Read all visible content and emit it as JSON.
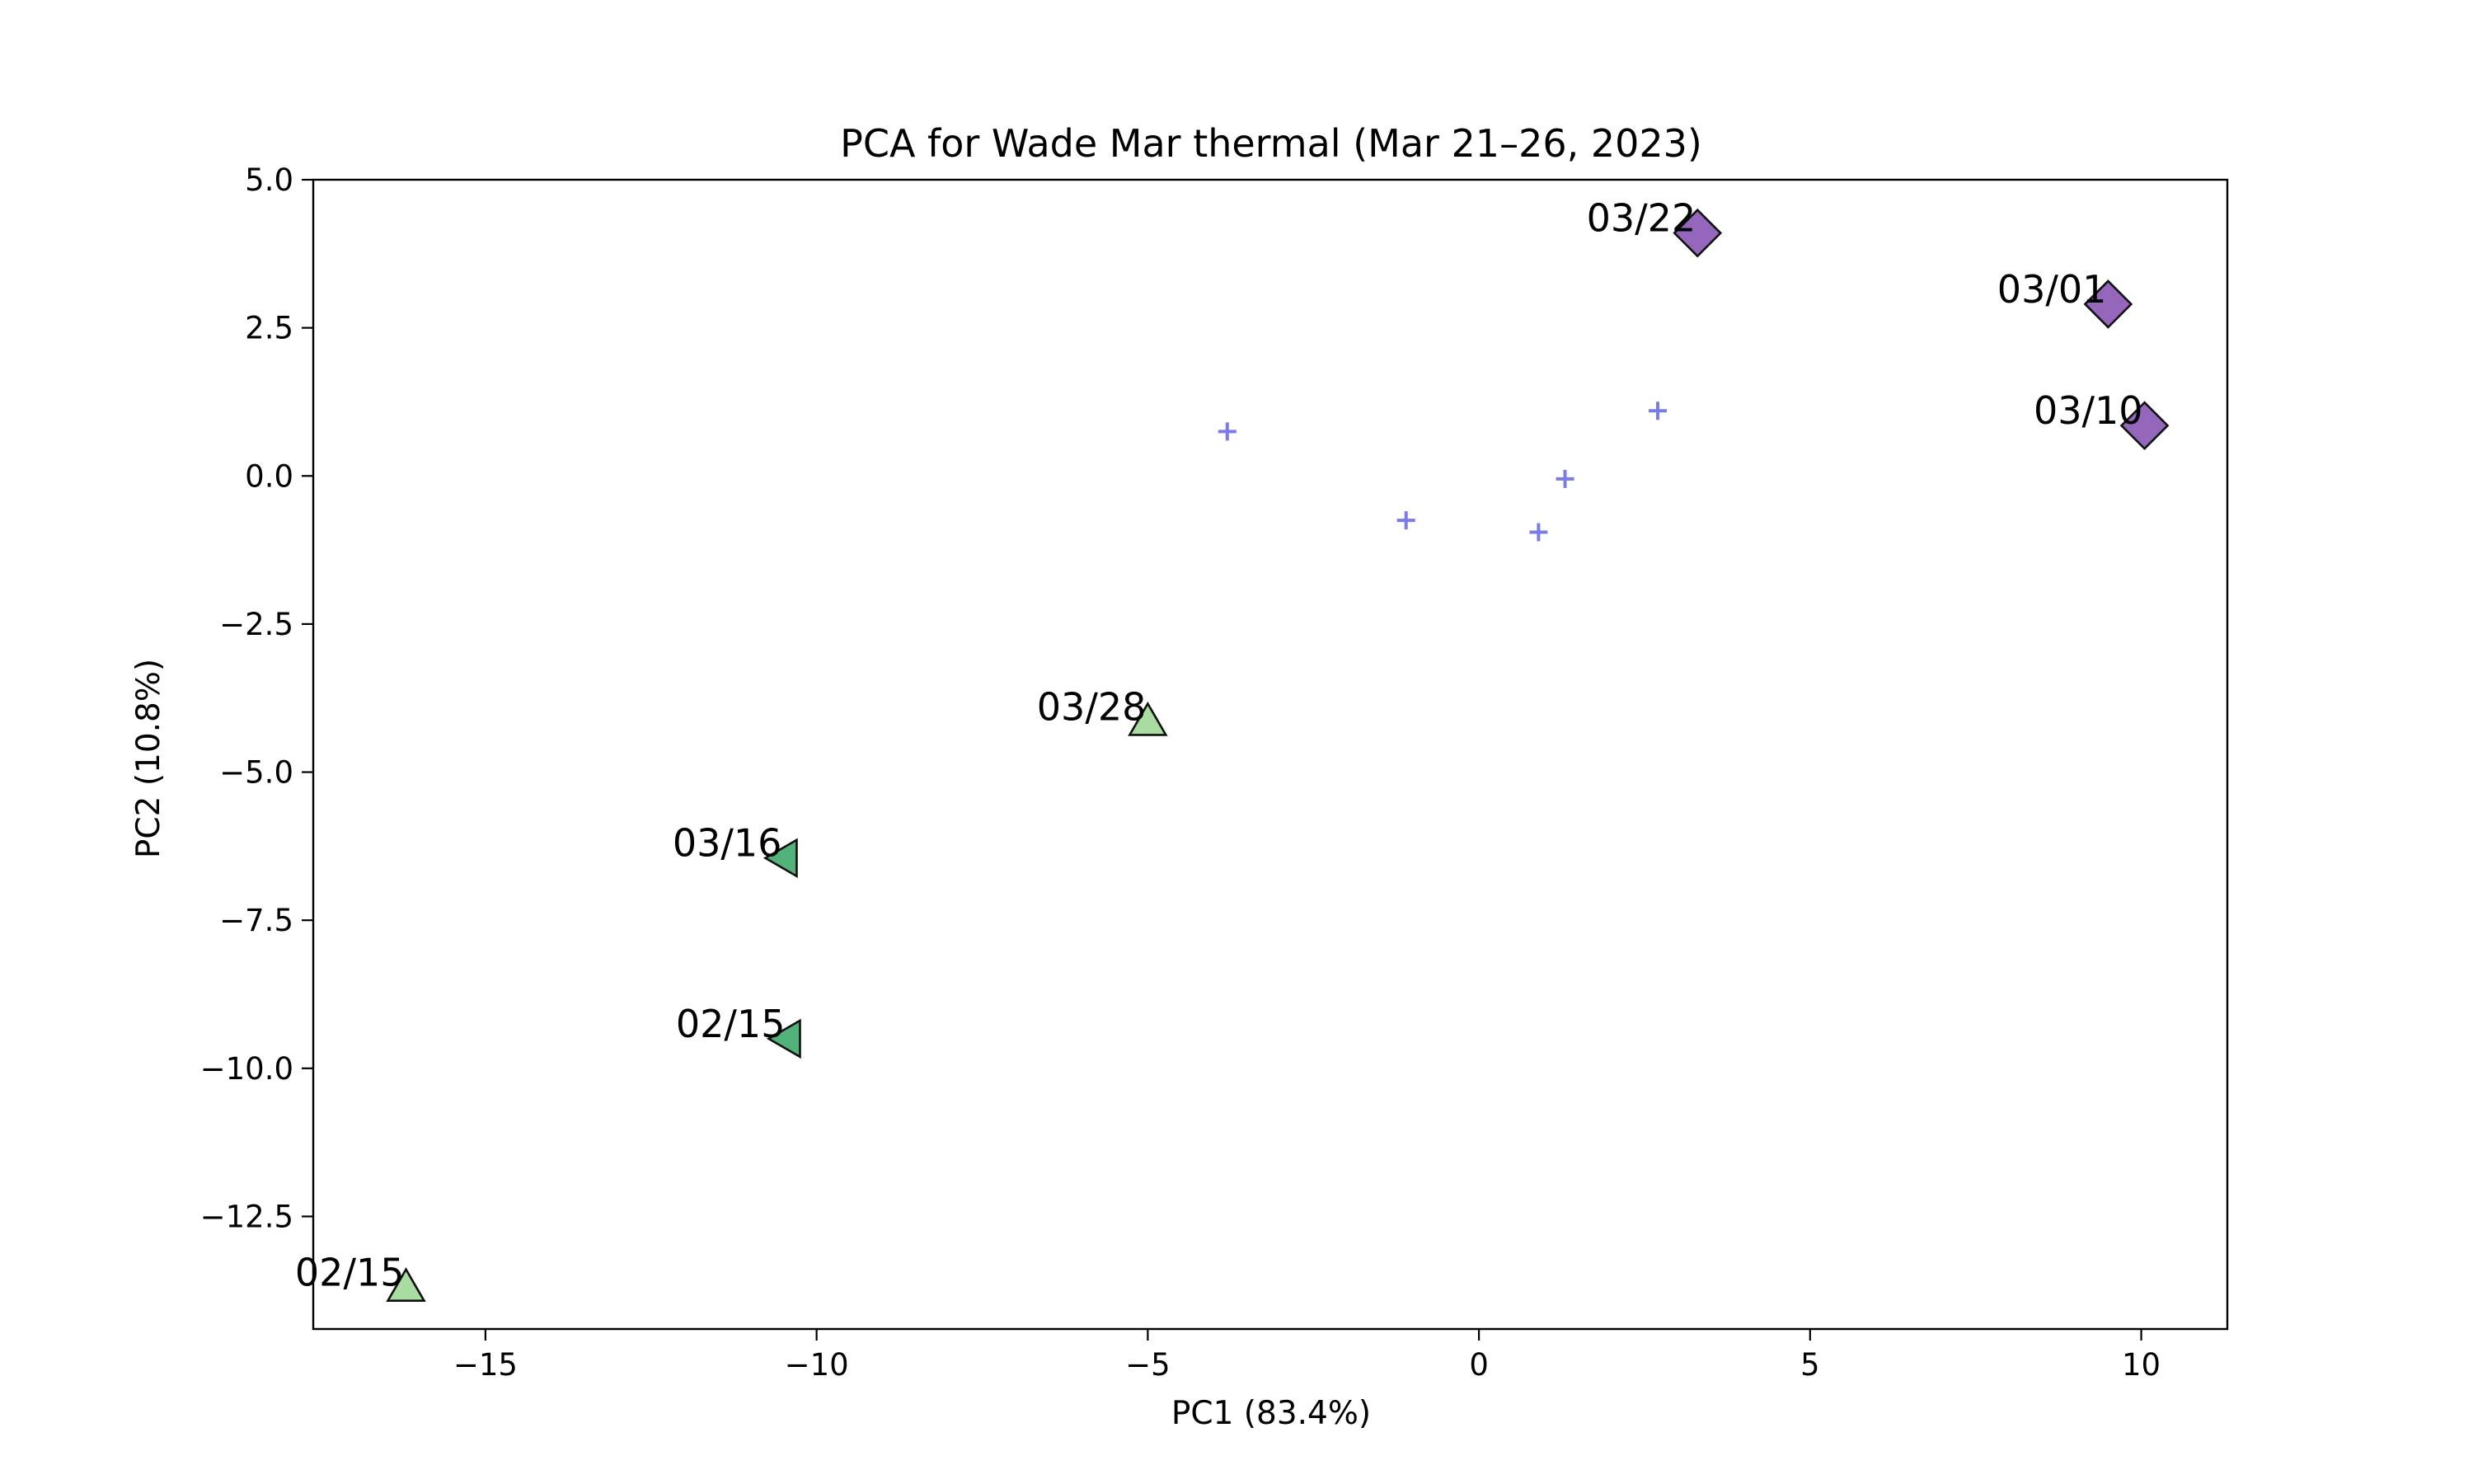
{
  "chart_data": {
    "type": "scatter",
    "title": "PCA for Wade Mar thermal (Mar 21–26, 2023)",
    "xlabel": "PC1 (83.4%)",
    "ylabel": "PC2 (10.8%)",
    "xlim": [
      -17.6,
      11.3
    ],
    "ylim": [
      -14.4,
      5.0
    ],
    "grid": false,
    "x_ticks": [
      -15,
      -10,
      -5,
      0,
      5,
      10
    ],
    "x_tick_labels": [
      "−15",
      "−10",
      "−5",
      "0",
      "5",
      "10"
    ],
    "y_ticks": [
      5.0,
      2.5,
      0.0,
      -2.5,
      -5.0,
      -7.5,
      -10.0,
      -12.5
    ],
    "y_tick_labels": [
      "5.0",
      "2.5",
      "0.0",
      "−2.5",
      "−5.0",
      "−7.5",
      "−10.0",
      "−12.5"
    ],
    "colors": {
      "background_points": "#7b7bea",
      "diamond": "#9467bd",
      "triangle_up": "#a8dca0",
      "triangle_left": "#52b37a",
      "marker_edge": "#111111"
    },
    "series": [
      {
        "marker": "plus",
        "color": "#7b7bea",
        "points": [
          {
            "x": -3.8,
            "y": 0.75
          },
          {
            "x": -1.1,
            "y": -0.75
          },
          {
            "x": 0.9,
            "y": -0.95
          },
          {
            "x": 1.3,
            "y": -0.05
          },
          {
            "x": 2.7,
            "y": 1.1
          }
        ]
      },
      {
        "marker": "diamond",
        "color": "#9467bd",
        "points": [
          {
            "x": 3.3,
            "y": 4.1,
            "label": "03/22"
          },
          {
            "x": 9.5,
            "y": 2.9,
            "label": "03/01"
          },
          {
            "x": 10.05,
            "y": 0.85,
            "label": "03/10"
          }
        ]
      },
      {
        "marker": "triangle-up",
        "color": "#a8dca0",
        "points": [
          {
            "x": -5.0,
            "y": -4.15,
            "label": "03/28"
          },
          {
            "x": -16.2,
            "y": -13.7,
            "label": "02/15"
          }
        ]
      },
      {
        "marker": "triangle-left",
        "color": "#52b37a",
        "points": [
          {
            "x": -10.5,
            "y": -6.45,
            "label": "03/16"
          },
          {
            "x": -10.45,
            "y": -9.5,
            "label": "02/15"
          }
        ]
      }
    ]
  }
}
